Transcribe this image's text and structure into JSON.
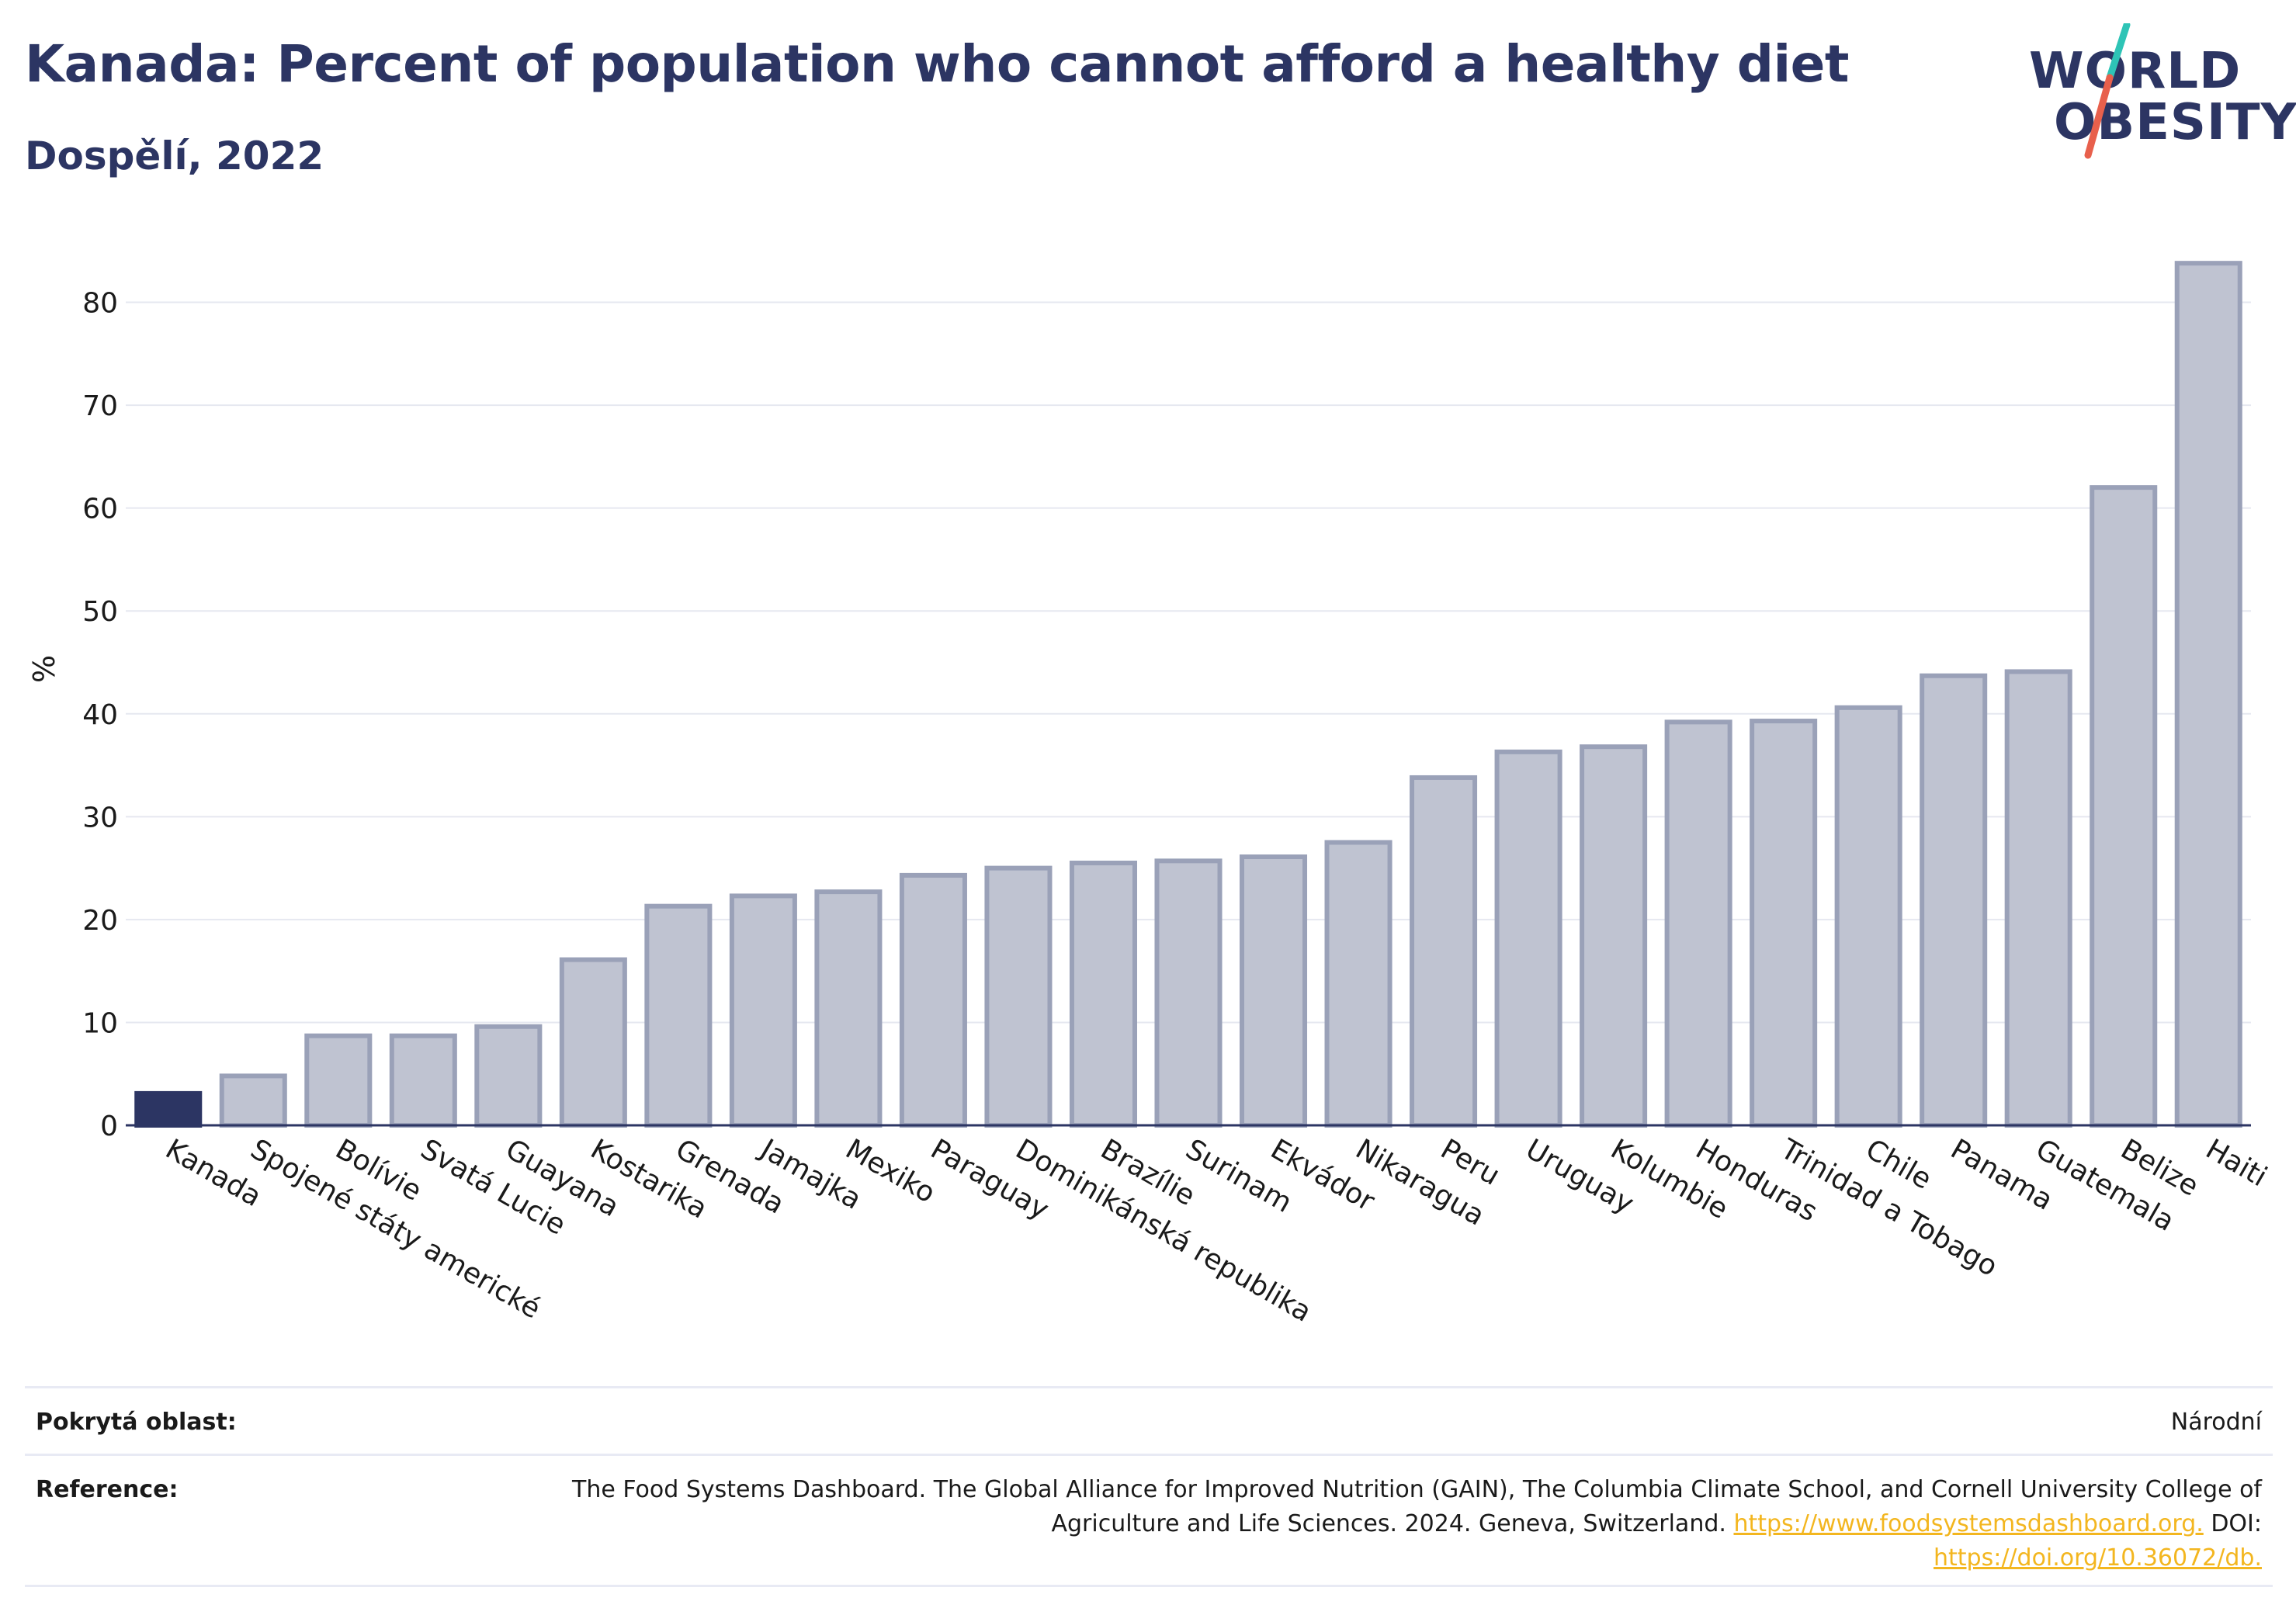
{
  "header": {
    "title": "Kanada: Percent of population who cannot afford a healthy diet",
    "subtitle": "Dospělí, 2022"
  },
  "logo": {
    "line1": "WORLD",
    "line2": "OBESITY",
    "slash_colors": [
      "#2ec4b6",
      "#e8604c"
    ]
  },
  "chart_data": {
    "type": "bar",
    "ylabel": "%",
    "xlabel": "",
    "ylim": [
      0,
      86
    ],
    "yticks": [
      0,
      10,
      20,
      30,
      40,
      50,
      60,
      70,
      80
    ],
    "grid": true,
    "highlight_category": "Kanada",
    "colors": {
      "highlight": "#2c3563",
      "bar_fill": "#bfc3d1",
      "bar_border": "#9aa1b8",
      "grid": "#e6e8f0",
      "axis": "#2c3563"
    },
    "categories": [
      "Kanada",
      "Spojené státy americké",
      "Bolívie",
      "Svatá Lucie",
      "Guayana",
      "Kostarika",
      "Grenada",
      "Jamajka",
      "Mexiko",
      "Paraguay",
      "Dominikánská republika",
      "Brazílie",
      "Surinam",
      "Ekvádor",
      "Nikaragua",
      "Peru",
      "Uruguay",
      "Kolumbie",
      "Honduras",
      "Trinidad a Tobago",
      "Chile",
      "Panama",
      "Guatemala",
      "Belize",
      "Haiti"
    ],
    "values": [
      3.1,
      4.8,
      8.7,
      8.7,
      9.6,
      16.1,
      21.3,
      22.3,
      22.7,
      24.3,
      25.0,
      25.5,
      25.7,
      26.1,
      27.5,
      33.8,
      36.3,
      36.8,
      39.2,
      39.3,
      40.6,
      43.7,
      44.1,
      62.0,
      83.8
    ]
  },
  "footer": {
    "coverage_label": "Pokrytá oblast:",
    "coverage_value": "Národní",
    "reference_label": "Reference:",
    "reference_text": "The Food Systems Dashboard. The Global Alliance for Improved Nutrition (GAIN), The Columbia Climate School, and Cornell University College of Agriculture and Life Sciences. 2024. Geneva, Switzerland.",
    "reference_link": "https://www.foodsystemsdashboard.org.",
    "doi_label": "DOI:",
    "doi_link": "https://doi.org/10.36072/db."
  }
}
